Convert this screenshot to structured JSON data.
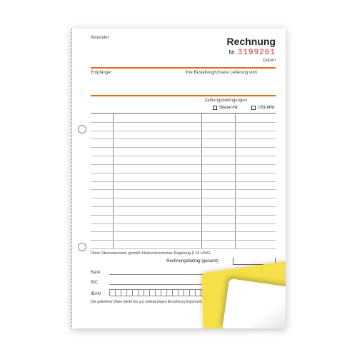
{
  "labels": {
    "absender": "Absender",
    "title": "Rechnung",
    "nr_prefix": "Nr.",
    "nr_value": "3199201",
    "datum": "Datum",
    "empfaenger": "Empfänger",
    "bestellung": "Ihre Bestellung/Unsere Lieferung vom",
    "zahlungsbedingungen": "Zahlungsbedingungen",
    "steuer": "Steuer-Nr.",
    "ustid": "USt-IdNr.",
    "tax_note": "Ohne Steuerausweis gemäß Kleinunternehmer-Regelung § 19 UStG.",
    "total": "Rechnungsbetrag (gesamt)",
    "bank": "Bank",
    "bic": "BIC",
    "iban": "IBAN",
    "footer": "Die gelieferte Ware bleibt bis zur vollständigen Bezahlung Eigentum des Lieferanten."
  },
  "colors": {
    "accent": "#e06a1a",
    "number": "#d22",
    "copy_sheet": "#f6e04a",
    "line": "#888"
  },
  "table": {
    "row_count": 16,
    "col_splits_pct": [
      12,
      60,
      78
    ]
  },
  "iban_box_count": 22
}
